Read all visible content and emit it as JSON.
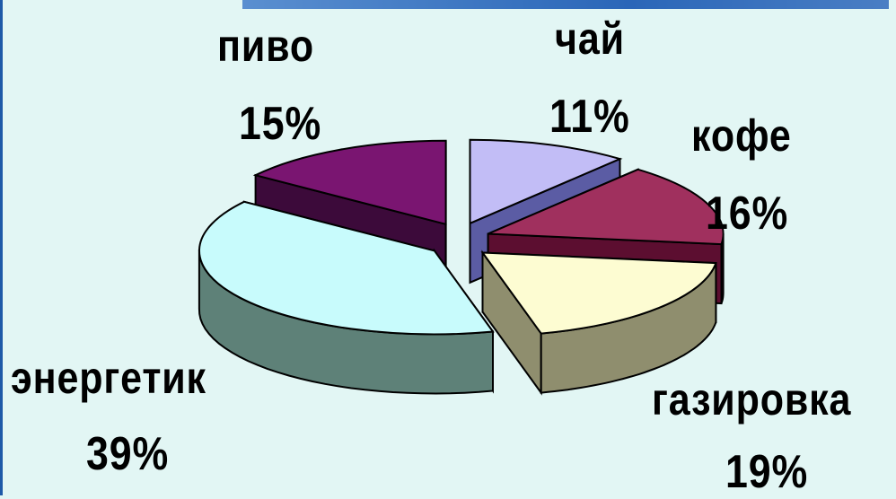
{
  "chart_data": {
    "type": "pie",
    "slices": [
      {
        "label": "чай",
        "value": 11,
        "percent_label": "11%",
        "color": "#c2bdf6",
        "side": "#5b5ca4"
      },
      {
        "label": "кофе",
        "value": 16,
        "percent_label": "16%",
        "color": "#a0305e",
        "side": "#5c0e30"
      },
      {
        "label": "газировка",
        "value": 19,
        "percent_label": "19%",
        "color": "#fdfcd2",
        "side": "#8f8e6e"
      },
      {
        "label": "энергетик",
        "value": 39,
        "percent_label": "39%",
        "color": "#c8fbfc",
        "side": "#5e8178"
      },
      {
        "label": "пиво",
        "value": 15,
        "percent_label": "15%",
        "color": "#7a1571",
        "side": "#3c0a3a"
      }
    ],
    "legend": "none"
  }
}
